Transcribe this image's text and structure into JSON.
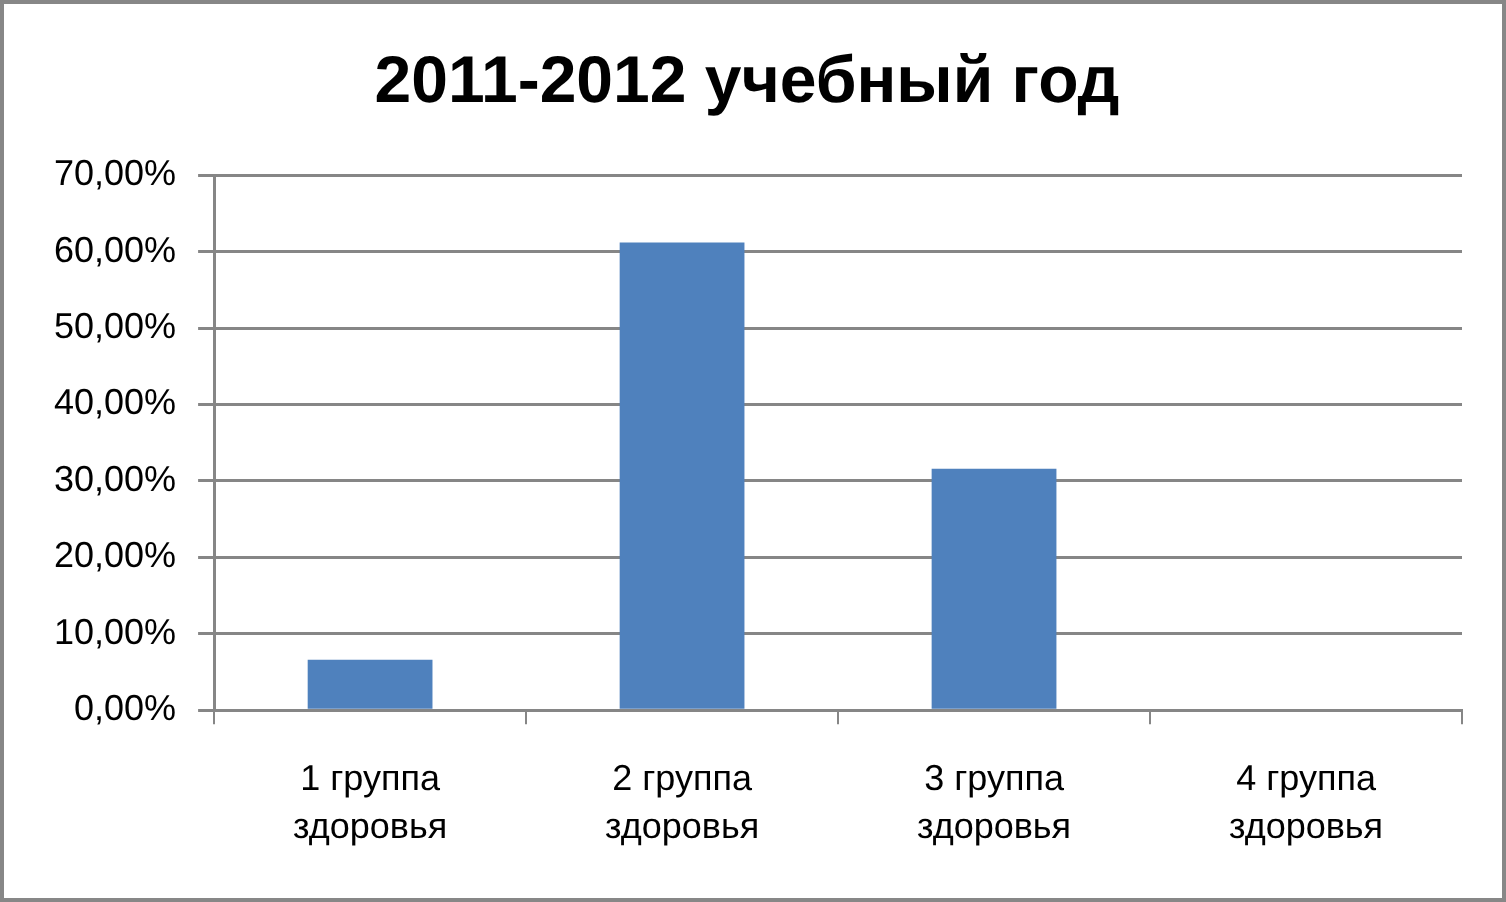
{
  "chart_data": {
    "type": "bar",
    "title": "2011-2012 учебный год",
    "categories": [
      "1 группа здоровья",
      "2 группа здоровья",
      "3 группа здоровья",
      "4 группа здоровья"
    ],
    "values": [
      6.6,
      61.2,
      31.6,
      0
    ],
    "color": "#4f81bd",
    "ylim": [
      0,
      70
    ],
    "yticks": [
      {
        "value": 0,
        "label": "0,00%"
      },
      {
        "value": 10,
        "label": "10,00%"
      },
      {
        "value": 20,
        "label": "20,00%"
      },
      {
        "value": 30,
        "label": "30,00%"
      },
      {
        "value": 40,
        "label": "40,00%"
      },
      {
        "value": 50,
        "label": "50,00%"
      },
      {
        "value": 60,
        "label": "60,00%"
      },
      {
        "value": 70,
        "label": "70,00%"
      }
    ],
    "grid": "y",
    "legend": false
  }
}
